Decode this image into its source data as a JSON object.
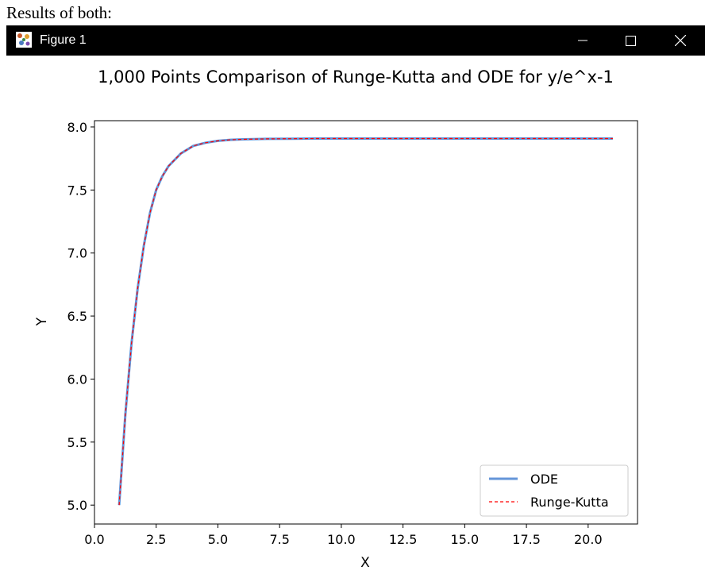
{
  "caption": "Results of both:",
  "window": {
    "title": "Figure 1",
    "icon": "matplotlib-figure-icon",
    "controls": [
      "minimize-icon",
      "maximize-icon",
      "close-icon"
    ]
  },
  "chart_data": {
    "type": "line",
    "title": "1,000 Points Comparison of Runge-Kutta and ODE for y/e^x-1",
    "xlabel": "X",
    "ylabel": "Y",
    "xlim": [
      0.0,
      22.0
    ],
    "ylim": [
      4.85,
      8.05
    ],
    "xticks": [
      0.0,
      2.5,
      5.0,
      7.5,
      10.0,
      12.5,
      15.0,
      17.5,
      20.0
    ],
    "xtick_labels": [
      "0.0",
      "2.5",
      "5.0",
      "7.5",
      "10.0",
      "12.5",
      "15.0",
      "17.5",
      "20.0"
    ],
    "yticks": [
      5.0,
      5.5,
      6.0,
      6.5,
      7.0,
      7.5,
      8.0
    ],
    "ytick_labels": [
      "5.0",
      "5.5",
      "6.0",
      "6.5",
      "7.0",
      "7.5",
      "8.0"
    ],
    "grid": false,
    "legend": "lower-right",
    "x": [
      1.0,
      1.25,
      1.5,
      1.75,
      2.0,
      2.25,
      2.5,
      2.75,
      3.0,
      3.5,
      4.0,
      4.5,
      5.0,
      5.5,
      6.0,
      7.0,
      8.0,
      9.0,
      10.0,
      12.0,
      14.0,
      16.0,
      18.0,
      20.0,
      21.0
    ],
    "series": [
      {
        "name": "ODE",
        "color": "#6495d8",
        "style": "solid",
        "values": [
          5.0,
          5.72,
          6.28,
          6.72,
          7.06,
          7.32,
          7.5,
          7.61,
          7.69,
          7.79,
          7.85,
          7.875,
          7.89,
          7.898,
          7.902,
          7.906,
          7.907,
          7.908,
          7.908,
          7.908,
          7.908,
          7.908,
          7.908,
          7.908,
          7.908
        ]
      },
      {
        "name": "Runge-Kutta",
        "color": "#ff0000",
        "style": "dashed",
        "values": [
          5.0,
          5.72,
          6.28,
          6.72,
          7.06,
          7.32,
          7.5,
          7.61,
          7.69,
          7.79,
          7.85,
          7.875,
          7.89,
          7.898,
          7.902,
          7.906,
          7.907,
          7.908,
          7.908,
          7.908,
          7.908,
          7.908,
          7.908,
          7.908,
          7.908
        ]
      }
    ]
  }
}
